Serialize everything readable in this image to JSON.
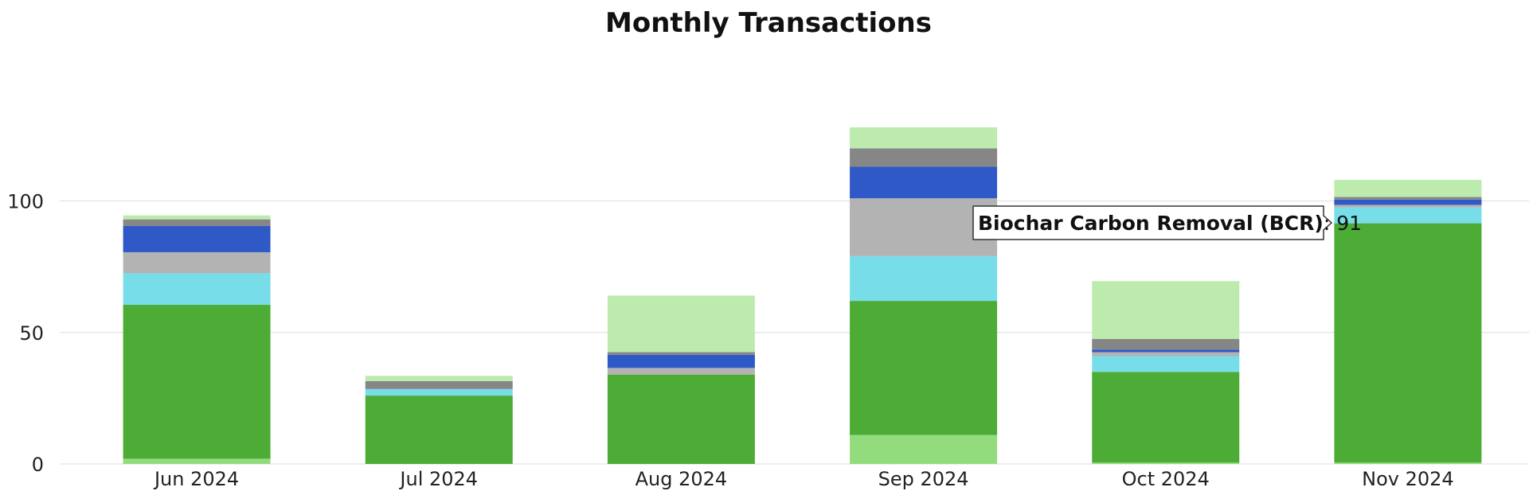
{
  "chart_data": {
    "type": "bar",
    "stacked": true,
    "title": "Monthly Transactions",
    "xlabel": "",
    "ylabel": "",
    "ylim": [
      0,
      135
    ],
    "yticks": [
      0,
      50,
      100
    ],
    "grid": true,
    "categories": [
      "Jun 2024",
      "Jul 2024",
      "Aug 2024",
      "Sep 2024",
      "Oct 2024",
      "Nov 2024"
    ],
    "series": [
      {
        "color": "#92dc7e",
        "values": [
          2,
          0,
          0,
          11,
          0.5,
          0.5
        ]
      },
      {
        "name": "Biochar Carbon Removal (BCR)",
        "color": "#4dac36",
        "values": [
          58.5,
          26,
          34,
          51,
          34.5,
          91
        ]
      },
      {
        "color": "#76dde9",
        "values": [
          12,
          2.5,
          0,
          17,
          6,
          6
        ]
      },
      {
        "color": "#b3b3b3",
        "values": [
          8,
          0,
          2.5,
          22,
          1.5,
          1
        ]
      },
      {
        "color": "#2f59c7",
        "values": [
          10,
          0,
          5,
          12,
          1,
          2
        ]
      },
      {
        "color": "#868686",
        "values": [
          2.5,
          3,
          1,
          7,
          4,
          1
        ]
      },
      {
        "color": "#bdebae",
        "values": [
          1.5,
          2,
          21.5,
          8,
          22,
          6.5
        ]
      }
    ],
    "tooltip": {
      "label": "Biochar Carbon Removal (BCR)",
      "value": "91"
    }
  }
}
